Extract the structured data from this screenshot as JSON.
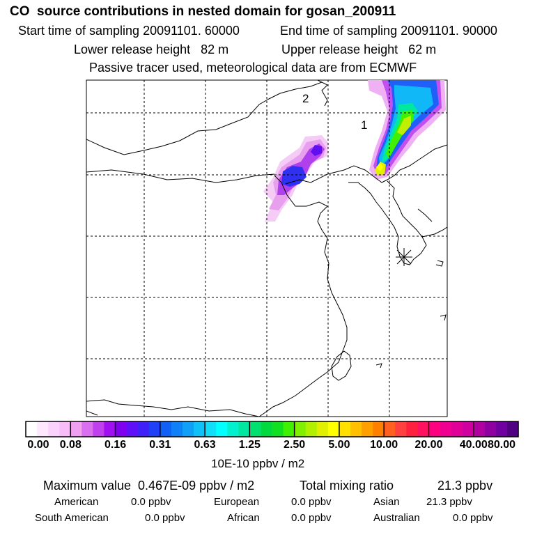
{
  "header": {
    "title": "CO  source contributions in nested domain for gosan_200911",
    "start": "Start time of sampling 20091101. 60000",
    "end": "End time of sampling 20091101. 90000",
    "lower": "Lower release height   82 m",
    "upper": "Upper release height   62 m",
    "note": "Passive tracer used, meteorological data are from ECMWF"
  },
  "map": {
    "labels": [
      "2",
      "1"
    ],
    "station_marker": "asterisk-marker"
  },
  "colorbar": {
    "ticks": [
      "0.00",
      "0.08",
      "0.16",
      "0.31",
      "0.63",
      "1.25",
      "2.50",
      "5.00",
      "10.00",
      "20.00",
      "40.00",
      "80.00"
    ],
    "unit": "10E-10 ppbv / m2",
    "colors": [
      "#ffffff",
      "#fde8fd",
      "#fbd2fb",
      "#f8bcf8",
      "#f0a0f0",
      "#d870f0",
      "#c040ee",
      "#a010f0",
      "#8000f0",
      "#6010f8",
      "#4020f8",
      "#2040f8",
      "#1060f8",
      "#1080f8",
      "#10a0f8",
      "#10c0f8",
      "#10ddf8",
      "#00ffff",
      "#00f0d0",
      "#00e8a0",
      "#00e070",
      "#00d840",
      "#10e020",
      "#40f000",
      "#80f000",
      "#b0f000",
      "#e0f000",
      "#ffff00",
      "#ffe000",
      "#ffc000",
      "#ffa000",
      "#ff8000",
      "#ff6020",
      "#ff4040",
      "#ff2040",
      "#ff1060",
      "#ff0080",
      "#f00090",
      "#e00098",
      "#d000a0",
      "#b000a0",
      "#9000a0",
      "#7000a0",
      "#500080"
    ]
  },
  "stats": {
    "max_label": "Maximum value  0.467E-09 ppbv / m2",
    "total_label": "Total mixing ratio",
    "total_value": "21.3 ppbv",
    "rows": [
      [
        {
          "label": "American",
          "value": "0.0 ppbv"
        },
        {
          "label": "European",
          "value": "0.0 ppbv"
        },
        {
          "label": "Asian",
          "value": "21.3 ppbv"
        }
      ],
      [
        {
          "label": "South American",
          "value": "0.0 ppbv"
        },
        {
          "label": "African",
          "value": "0.0 ppbv"
        },
        {
          "label": "Australian",
          "value": "0.0 ppbv"
        }
      ]
    ]
  }
}
